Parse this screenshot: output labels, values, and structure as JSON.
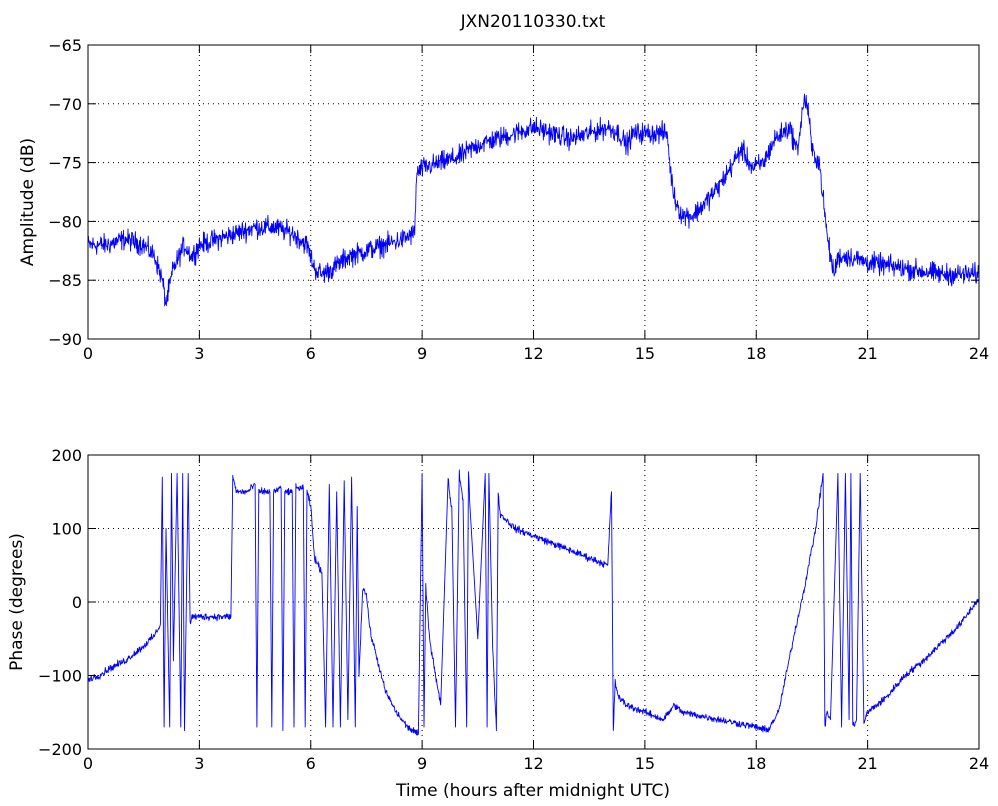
{
  "chart_data": [
    {
      "type": "line",
      "title": "JXN20110330.txt",
      "xlabel": "",
      "ylabel": "Amplitude (dB)",
      "xlim": [
        0,
        24
      ],
      "ylim": [
        -90,
        -65
      ],
      "xticks": [
        0,
        3,
        6,
        9,
        12,
        15,
        18,
        21,
        24
      ],
      "yticks": [
        -90,
        -85,
        -80,
        -75,
        -70,
        -65
      ],
      "xtick_labels": [
        "0",
        "3",
        "6",
        "9",
        "12",
        "15",
        "18",
        "21",
        "24"
      ],
      "ytick_labels": [
        "−90",
        "−85",
        "−80",
        "−75",
        "−70",
        "−65"
      ],
      "grid": true,
      "series": [
        {
          "color": "#0000ff",
          "noise": 1.3,
          "x": [
            0,
            0.5,
            1.0,
            1.5,
            1.8,
            2.0,
            2.1,
            2.3,
            2.6,
            2.8,
            3.0,
            3.5,
            4.0,
            4.5,
            5.0,
            5.5,
            5.9,
            6.1,
            6.3,
            6.6,
            7.0,
            7.5,
            8.0,
            8.5,
            8.8,
            8.85,
            9.0,
            9.5,
            10.0,
            10.5,
            11.0,
            11.5,
            12.0,
            12.5,
            13.0,
            13.5,
            14.0,
            14.3,
            14.5,
            14.7,
            15.0,
            15.3,
            15.6,
            15.7,
            15.8,
            16.0,
            16.3,
            16.6,
            17.0,
            17.3,
            17.6,
            17.9,
            18.2,
            18.5,
            18.9,
            19.1,
            19.3,
            19.4,
            19.5,
            19.7,
            19.8,
            19.9,
            20.0,
            20.1,
            20.2,
            20.5,
            21.0,
            22.0,
            23.0,
            24.0
          ],
          "y": [
            -82,
            -82,
            -81.5,
            -82,
            -83,
            -85,
            -87,
            -84,
            -82,
            -83,
            -82,
            -81.5,
            -81,
            -80.5,
            -80.5,
            -81,
            -82,
            -84,
            -84.5,
            -84,
            -83,
            -82.5,
            -82,
            -81.5,
            -81,
            -76,
            -75.5,
            -75,
            -74.5,
            -73.5,
            -73,
            -72.5,
            -72,
            -72.5,
            -73,
            -72.5,
            -72,
            -72.5,
            -73.5,
            -72.5,
            -72.5,
            -72.5,
            -72.5,
            -76,
            -78,
            -79.5,
            -79.5,
            -78.5,
            -77,
            -75.5,
            -73.8,
            -75.5,
            -75,
            -73,
            -72,
            -74,
            -69.5,
            -70.5,
            -74,
            -75,
            -78,
            -81,
            -83,
            -84.5,
            -83,
            -83,
            -83.5,
            -84,
            -84.5,
            -84.5
          ]
        }
      ]
    },
    {
      "type": "line",
      "title": "",
      "xlabel": "Time (hours after midnight UTC)",
      "ylabel": "Phase (degrees)",
      "xlim": [
        0,
        24
      ],
      "ylim": [
        -200,
        200
      ],
      "xticks": [
        0,
        3,
        6,
        9,
        12,
        15,
        18,
        21,
        24
      ],
      "yticks": [
        -200,
        -100,
        0,
        100,
        200
      ],
      "xtick_labels": [
        "0",
        "3",
        "6",
        "9",
        "12",
        "15",
        "18",
        "21",
        "24"
      ],
      "ytick_labels": [
        "−200",
        "−100",
        "0",
        "100",
        "200"
      ],
      "grid": true,
      "series": [
        {
          "color": "#0000ff",
          "noise": 7,
          "x": [
            0,
            0.3,
            0.6,
            1.0,
            1.5,
            1.8,
            1.95,
            2.0,
            2.05,
            2.1,
            2.2,
            2.25,
            2.3,
            2.4,
            2.5,
            2.55,
            2.6,
            2.7,
            2.75,
            2.8,
            3.0,
            3.3,
            3.6,
            3.85,
            3.9,
            4.0,
            4.1,
            4.3,
            4.5,
            4.55,
            4.6,
            4.9,
            4.95,
            5.0,
            5.2,
            5.25,
            5.3,
            5.5,
            5.55,
            5.6,
            5.8,
            5.85,
            5.9,
            6.0,
            6.1,
            6.3,
            6.4,
            6.5,
            6.6,
            6.7,
            6.8,
            6.9,
            7.0,
            7.1,
            7.2,
            7.25,
            7.3,
            7.4,
            7.5,
            7.6,
            7.8,
            8.0,
            8.3,
            8.6,
            8.9,
            9.0,
            9.05,
            9.1,
            9.2,
            9.3,
            9.5,
            9.7,
            9.75,
            9.8,
            9.9,
            10.0,
            10.1,
            10.2,
            10.25,
            10.3,
            10.5,
            10.7,
            10.75,
            10.8,
            10.9,
            11.0,
            11.05,
            11.1,
            11.5,
            12.0,
            12.5,
            13.0,
            13.5,
            14.0,
            14.1,
            14.15,
            14.2,
            14.3,
            14.5,
            15.0,
            15.5,
            15.8,
            16.0,
            16.5,
            17.0,
            17.5,
            18.0,
            18.3,
            18.6,
            19.0,
            19.3,
            19.6,
            19.8,
            19.85,
            19.9,
            20.0,
            20.2,
            20.3,
            20.4,
            20.5,
            20.55,
            20.6,
            20.7,
            20.8,
            20.9,
            21.0,
            21.5,
            22.0,
            22.5,
            23.0,
            23.5,
            24.0
          ],
          "y": [
            -105,
            -100,
            -90,
            -80,
            -60,
            -45,
            -30,
            170,
            -170,
            100,
            -170,
            175,
            -80,
            175,
            -170,
            175,
            -175,
            175,
            -30,
            -20,
            -20,
            -20,
            -20,
            -20,
            170,
            150,
            150,
            150,
            160,
            -170,
            150,
            150,
            -170,
            150,
            155,
            -175,
            150,
            150,
            -170,
            155,
            155,
            -170,
            150,
            130,
            60,
            40,
            -170,
            160,
            -170,
            150,
            -170,
            165,
            -160,
            170,
            -170,
            130,
            -100,
            20,
            10,
            -40,
            -80,
            -120,
            -150,
            -170,
            -180,
            175,
            -170,
            20,
            -50,
            -80,
            -140,
            170,
            140,
            130,
            -170,
            175,
            140,
            -170,
            175,
            120,
            -50,
            175,
            -170,
            175,
            -60,
            -175,
            150,
            120,
            100,
            90,
            80,
            70,
            60,
            50,
            150,
            -175,
            -110,
            -130,
            -140,
            -150,
            -160,
            -140,
            -150,
            -155,
            -160,
            -165,
            -170,
            -175,
            -150,
            -50,
            20,
            100,
            175,
            -170,
            -150,
            -160,
            175,
            -170,
            175,
            -160,
            175,
            -170,
            -160,
            175,
            -165,
            -150,
            -130,
            -100,
            -80,
            -55,
            -30,
            5
          ]
        }
      ]
    }
  ]
}
